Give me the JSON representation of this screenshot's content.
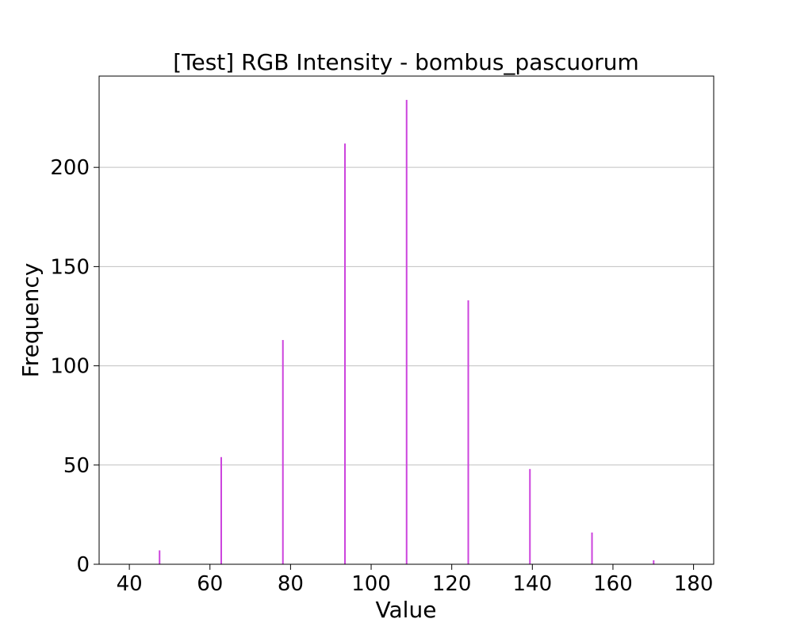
{
  "chart_data": {
    "type": "bar",
    "title": "[Test] RGB Intensity - bombus_pascuorum",
    "xlabel": "Value",
    "ylabel": "Frequency",
    "xlim": [
      32.5,
      185
    ],
    "ylim": [
      0,
      246
    ],
    "xticks": [
      40,
      60,
      80,
      100,
      120,
      140,
      160,
      180
    ],
    "yticks": [
      0,
      50,
      100,
      150,
      200
    ],
    "grid": "y",
    "bar_color": "#cc44dd",
    "bar_width": 0.5,
    "x": [
      47.5,
      62.8,
      78.1,
      93.5,
      108.8,
      124.1,
      139.4,
      154.8,
      170.1
    ],
    "values": [
      7,
      54,
      113,
      212,
      234,
      133,
      48,
      16,
      2
    ]
  }
}
